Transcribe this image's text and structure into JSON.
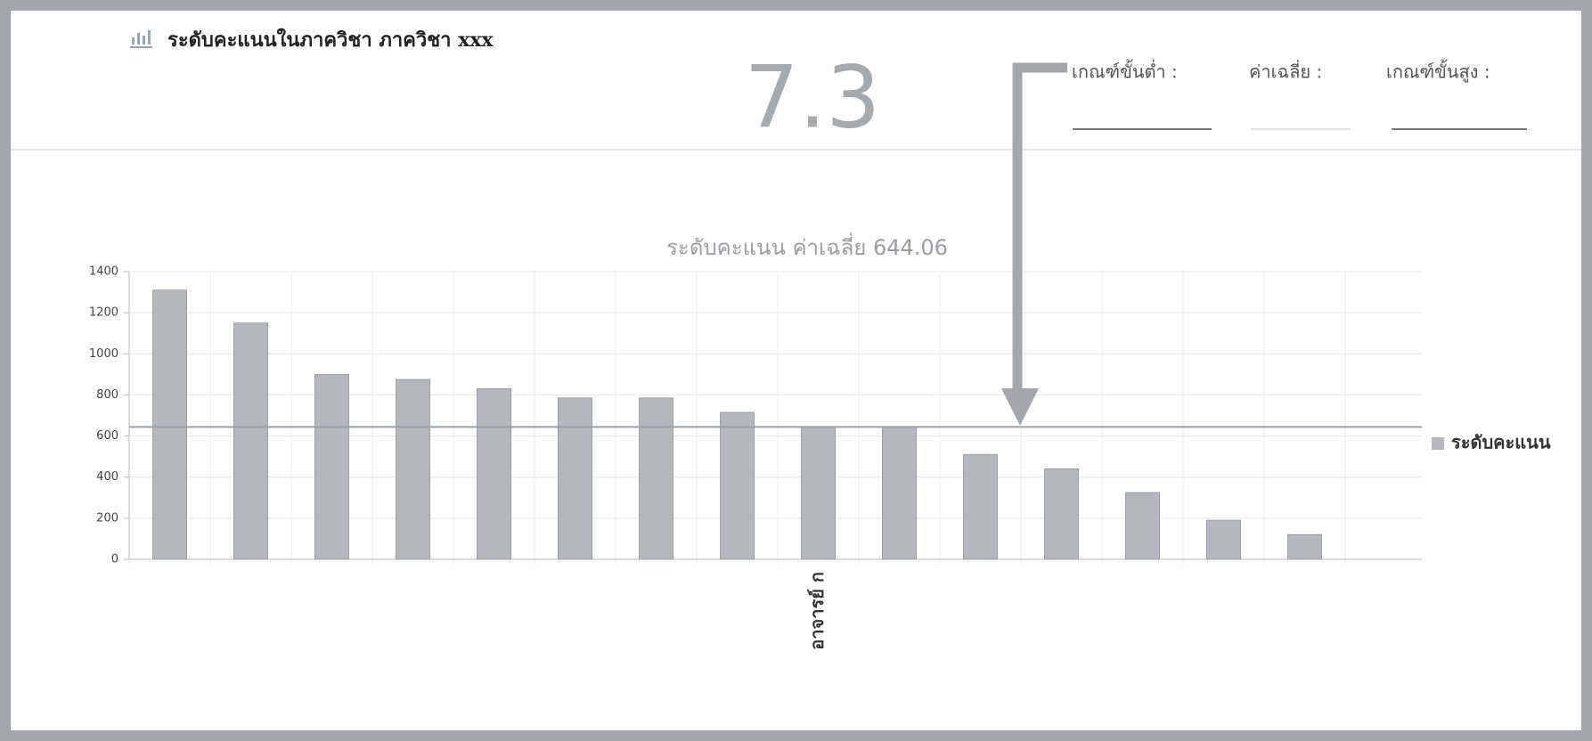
{
  "header": {
    "title": "ระดับคะแนนในภาควิชา  ภาควิชา xxx",
    "score": "7.3",
    "criteria": [
      "เกณฑ์ขั้นต่ำ :",
      "ค่าเฉลี่ย :",
      "เกณฑ์ขั้นสูง :"
    ]
  },
  "chart_data": {
    "type": "bar",
    "title": "ระดับคะแนน ค่าเฉลี่ย 644.06",
    "categories": [
      null,
      null,
      null,
      null,
      null,
      null,
      null,
      null,
      "อาจารย์ ก",
      null,
      null,
      null,
      null,
      null,
      null
    ],
    "series": [
      {
        "name": "ระดับคะแนน",
        "color": "#b4b8bd",
        "values": [
          1310,
          1150,
          900,
          875,
          830,
          785,
          785,
          715,
          645,
          645,
          510,
          440,
          325,
          190,
          120
        ]
      }
    ],
    "average_line": 644.06,
    "ylim": [
      0,
      1400
    ],
    "yticks": [
      0,
      200,
      400,
      600,
      800,
      1000,
      1200,
      1400
    ],
    "grid": true,
    "legend": "right"
  }
}
